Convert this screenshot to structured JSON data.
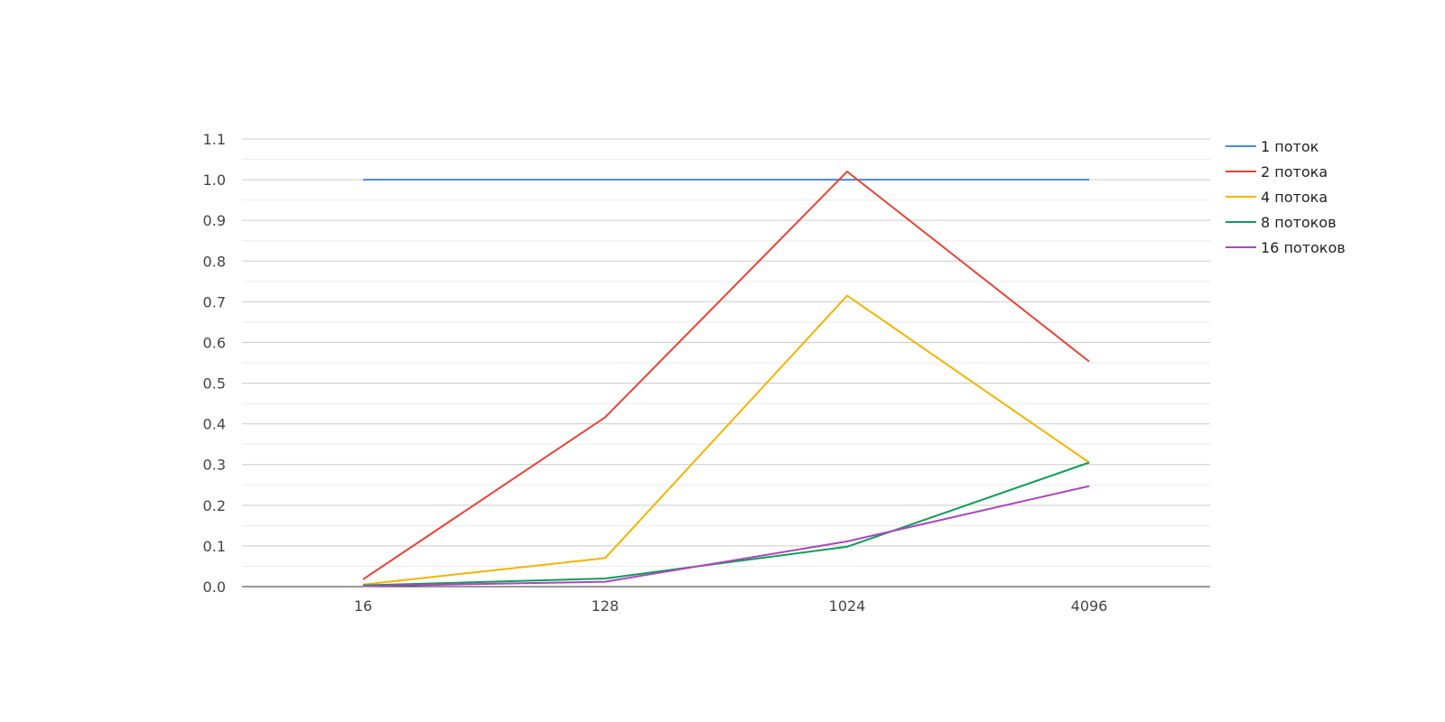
{
  "chart_data": {
    "type": "line",
    "title": "",
    "xlabel": "",
    "ylabel": "",
    "categories": [
      "16",
      "128",
      "1024",
      "4096"
    ],
    "ylim": [
      0,
      1.1
    ],
    "y_ticks": [
      "0.0",
      "0.1",
      "0.2",
      "0.3",
      "0.4",
      "0.5",
      "0.6",
      "0.7",
      "0.8",
      "0.9",
      "1.0",
      "1.1"
    ],
    "grid": true,
    "legend_position": "right",
    "series": [
      {
        "name": "1 поток",
        "color": "#4a86e8",
        "values": [
          1.0,
          1.0,
          1.0,
          1.0
        ]
      },
      {
        "name": "2 потока",
        "color": "#e84335",
        "values": [
          0.018,
          0.416,
          1.02,
          0.553
        ]
      },
      {
        "name": "4 потока",
        "color": "#f4b400",
        "values": [
          0.005,
          0.07,
          0.715,
          0.305
        ]
      },
      {
        "name": "8 потоков",
        "color": "#0f9d58",
        "values": [
          0.003,
          0.02,
          0.098,
          0.305
        ]
      },
      {
        "name": "16 потоков",
        "color": "#ab47bc",
        "values": [
          0.001,
          0.012,
          0.111,
          0.247
        ]
      }
    ]
  }
}
